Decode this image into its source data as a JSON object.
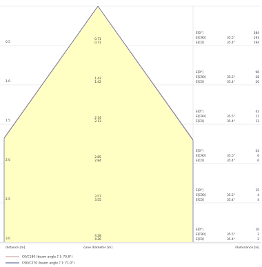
{
  "chart_data": {
    "type": "area",
    "title": "",
    "xlabel": "cone diameter [m]",
    "ylabel": "distance [m]",
    "right_label": "illuminance [lx]",
    "colors": {
      "cone_fill": "#ffffc4",
      "c0_line": "#c9a9a9",
      "c90_line": "#6a6fa3",
      "grid": "#dddddd"
    },
    "distance_ticks": [
      "0.5",
      "1.0",
      "1.5",
      "2.0",
      "2.5",
      "3.0"
    ],
    "rows": [
      {
        "distance": 0.5,
        "diameter_c0": "0.71",
        "diameter_c90": "0.71",
        "e0_label": "E[0°]",
        "e0_value": "384",
        "ec90_label": "E[C90]",
        "ec90_angle": "35.5°",
        "ec90_value": "193",
        "ec0_label": "E[C0]",
        "ec0_angle": "35.4°",
        "ec0_value": "194"
      },
      {
        "distance": 1.0,
        "diameter_c0": "1.43",
        "diameter_c90": "1.42",
        "e0_label": "E[0°]",
        "e0_value": "96",
        "ec90_label": "E[C90]",
        "ec90_angle": "35.5°",
        "ec90_value": "28",
        "ec0_label": "E[C0]",
        "ec0_angle": "35.4°",
        "ec0_value": "26"
      },
      {
        "distance": 1.5,
        "diameter_c0": "2.14",
        "diameter_c90": "2.13",
        "e0_label": "E[0°]",
        "e0_value": "42",
        "ec90_label": "E[C90]",
        "ec90_angle": "35.5°",
        "ec90_value": "11",
        "ec0_label": "E[C0]",
        "ec0_angle": "35.4°",
        "ec0_value": "11"
      },
      {
        "distance": 2.0,
        "diameter_c0": "2.85",
        "diameter_c90": "2.84",
        "e0_label": "E[0°]",
        "e0_value": "24",
        "ec90_label": "E[C90]",
        "ec90_angle": "35.5°",
        "ec90_value": "6",
        "ec0_label": "E[C0]",
        "ec0_angle": "35.4°",
        "ec0_value": "6"
      },
      {
        "distance": 2.5,
        "diameter_c0": "3.57",
        "diameter_c90": "3.55",
        "e0_label": "E[0°]",
        "e0_value": "15",
        "ec90_label": "E[C90]",
        "ec90_angle": "35.5°",
        "ec90_value": "4",
        "ec0_label": "E[C0]",
        "ec0_angle": "35.4°",
        "ec0_value": "4"
      },
      {
        "distance": 3.0,
        "diameter_c0": "4.28",
        "diameter_c90": "4.26",
        "e0_label": "E[0°]",
        "e0_value": "10",
        "ec90_label": "E[C90]",
        "ec90_angle": "35.5°",
        "ec90_value": "2",
        "ec0_label": "E[C0]",
        "ec0_angle": "35.4°",
        "ec0_value": "2"
      }
    ],
    "legend": [
      {
        "name": "C0/C180 (beam angle [°]: 70.8°)",
        "color": "#c9a9a9"
      },
      {
        "name": "C90/C270 (beam angle [°]: 71.0°)",
        "color": "#6a6fa3"
      }
    ],
    "legend_placement": "bottom-left"
  }
}
